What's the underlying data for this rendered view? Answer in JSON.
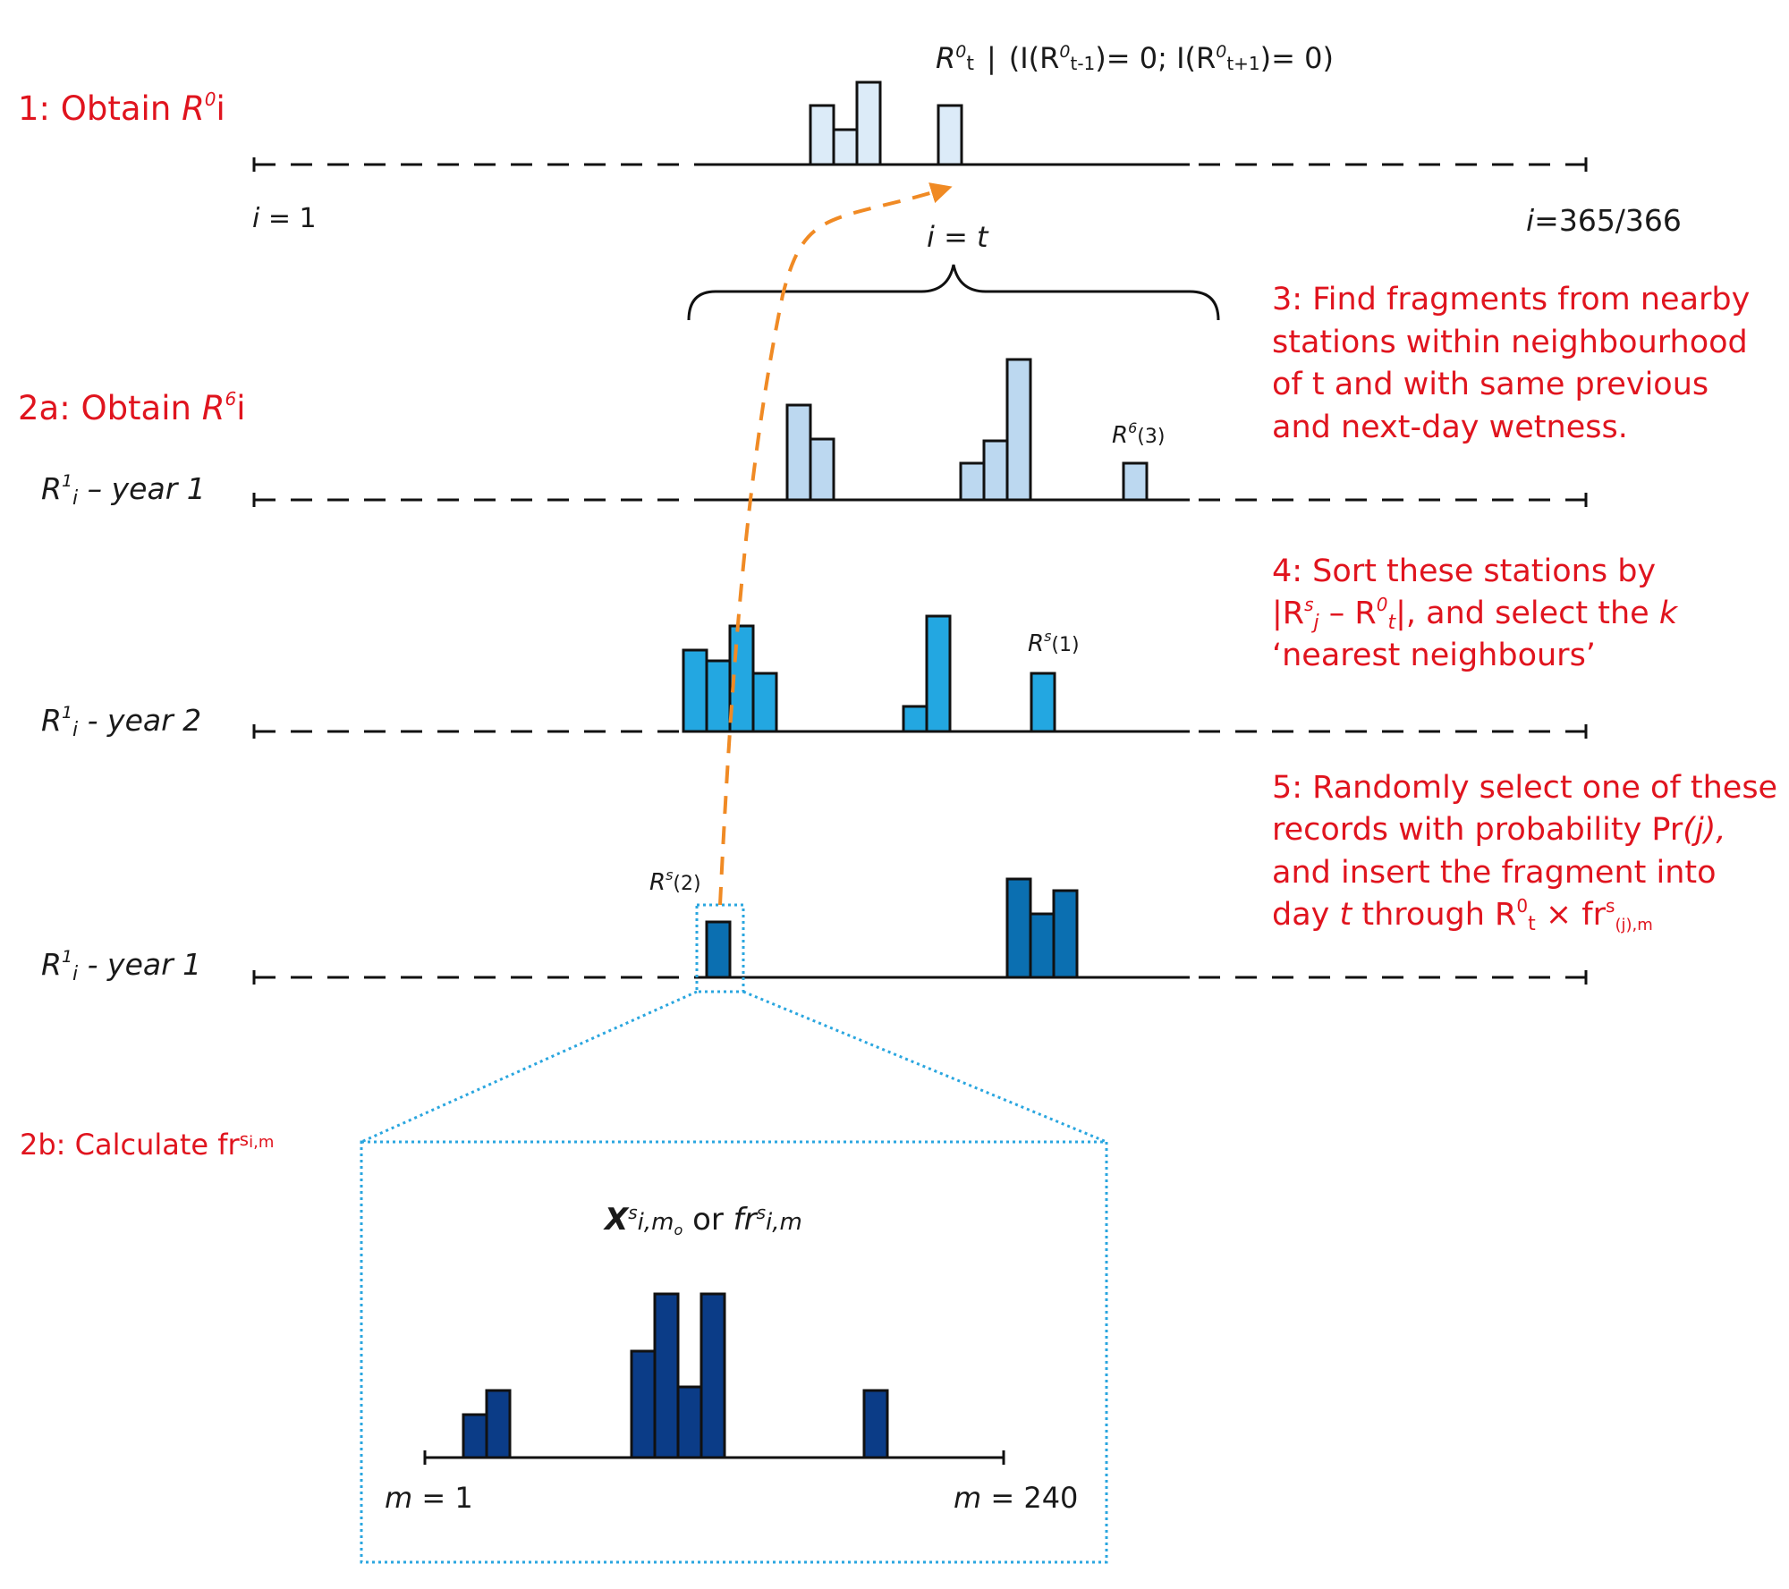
{
  "colors": {
    "step_text": "#e0141e",
    "arrow": "#f08a24",
    "zoom_box": "#2aa6df",
    "bar_outline": "#111111",
    "row1_fill": "#dcebf8",
    "row2_fill": "#bcd8f0",
    "row3_fill": "#23a7e1",
    "row4_fill": "#0b6fb1",
    "detail_fill": "#0b3c87"
  },
  "steps": {
    "s1_text": "1: Obtain ",
    "s1_sym": "R",
    "s1_sup": "0",
    "s1_sub": "i",
    "s2a_text": "2a: Obtain ",
    "s2a_sym": "R",
    "s2a_sup": "6",
    "s2a_sub": "i",
    "s2b_text": "2b: Calculate fr",
    "s2b_sup": "s",
    "s2b_sub": "i,m",
    "s3_lines": [
      "3: Find fragments from nearby",
      "stations within neighbourhood",
      "of t and with same previous",
      "and next-day wetness."
    ],
    "s4_line1": "4: Sort these stations by",
    "s4_l2_a": "|R",
    "s4_l2_b": "s",
    "s4_l2_c": "j",
    "s4_l2_d": " – R",
    "s4_l2_e": "0",
    "s4_l2_f": "t",
    "s4_l2_g": "|, and select the ",
    "s4_l2_h": "k",
    "s4_line3": "‘nearest neighbours’",
    "s5_line1": "5: Randomly select one of these",
    "s5_l2_a": "records with probability Pr",
    "s5_l2_b": "(j),",
    "s5_line3": "and insert the fragment into",
    "s5_l4_a": "day ",
    "s5_l4_b": "t",
    "s5_l4_c": " through R",
    "s5_l4_d": "0",
    "s5_l4_e": "t",
    "s5_l4_f": " × fr",
    "s5_l4_g": "s",
    "s5_l4_h": "(j),m"
  },
  "header": {
    "r": "R",
    "sup0": "0",
    "sub_t": "t",
    "bar": "|",
    "open": "(I(R",
    "sub_tm1": "t-1",
    "mid": ")= 0;  I(R",
    "sub_tp1": "t+1",
    "close": ")= 0)"
  },
  "axis": {
    "i1_i": "i",
    "i1_rest": " = 1",
    "iend_i": "i",
    "iend_rest": "=365/366",
    "it_i": "i",
    "it_mid": " = ",
    "it_t": "t"
  },
  "rows": {
    "row1_r": "R",
    "row1_sup": "1",
    "row1_sub": "i",
    "row1_year": " – year 1",
    "row2_r": "R",
    "row2_sup": "1",
    "row2_sub": "i",
    "row2_year": " - year 2",
    "row3_r": "R",
    "row3_sup": "1",
    "row3_sub": "i",
    "row3_year": " - year 1"
  },
  "annotations": {
    "r6_r": "R",
    "r6_sup": "6",
    "r6_idx": "(3)",
    "rs1_r": "R",
    "rs1_sup": "s",
    "rs1_idx": "(1)",
    "rs2_r": "R",
    "rs2_sup": "s",
    "rs2_idx": "(2)"
  },
  "detail": {
    "x": "X",
    "x_sup": "s",
    "x_sub": "i,m",
    "x_subsub": "o",
    "or": " or ",
    "fr": "fr",
    "fr_sup": "s",
    "fr_sub": "i,m",
    "m1_m": "m",
    "m1_rest": " = 1",
    "m240_m": "m",
    "m240_rest": " = 240"
  }
}
